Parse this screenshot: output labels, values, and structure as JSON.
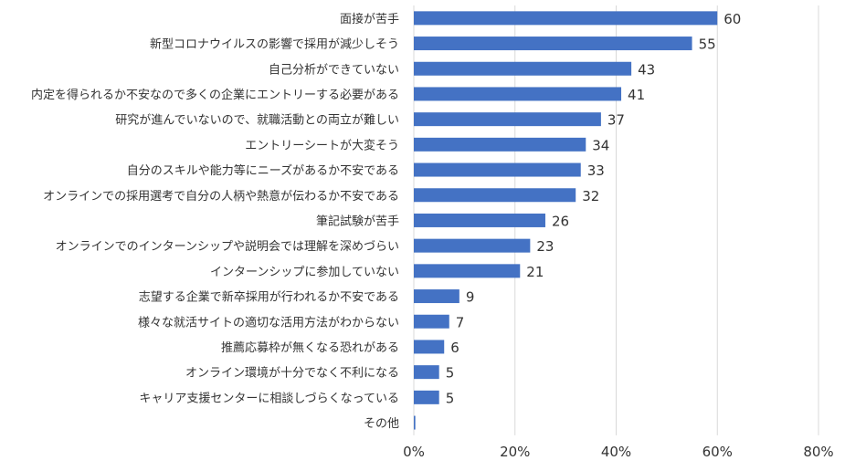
{
  "chart_data": {
    "type": "bar",
    "orientation": "horizontal",
    "categories": [
      "面接が苦手",
      "新型コロナウイルスの影響で採用が減少しそう",
      "自己分析ができていない",
      "内定を得られるか不安なので多くの企業にエントリーする必要がある",
      "研究が進んでいないので、就職活動との両立が難しい",
      "エントリーシートが大変そう",
      "自分のスキルや能力等にニーズがあるか不安である",
      "オンラインでの採用選考で自分の人柄や熱意が伝わるか不安である",
      "筆記試験が苦手",
      "オンラインでのインターンシップや説明会では理解を深めづらい",
      "インターンシップに参加していない",
      "志望する企業で新卒採用が行われるか不安である",
      "様々な就活サイトの適切な活用方法がわからない",
      "推薦応募枠が無くなる恐れがある",
      "オンライン環境が十分でなく不利になる",
      "キャリア支援センターに相談しづらくなっている",
      "その他"
    ],
    "values": [
      60,
      55,
      43,
      41,
      37,
      34,
      33,
      32,
      26,
      23,
      21,
      9,
      7,
      6,
      5,
      5,
      0.3
    ],
    "data_labels": [
      "60",
      "55",
      "43",
      "41",
      "37",
      "34",
      "33",
      "32",
      "26",
      "23",
      "21",
      "9",
      "7",
      "6",
      "5",
      "5",
      ""
    ],
    "x_ticks": [
      "0%",
      "20%",
      "40%",
      "60%",
      "80%"
    ],
    "xlim": [
      0,
      80
    ],
    "grid": "vertical",
    "bar_color": "#4472C4",
    "grid_color": "#D9D9D9"
  }
}
